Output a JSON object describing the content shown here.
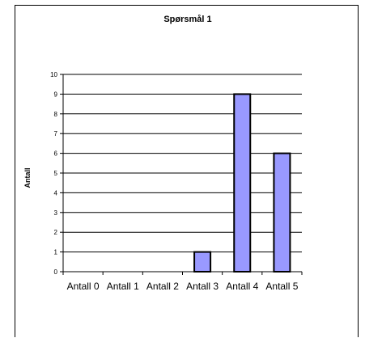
{
  "chart_data": {
    "type": "bar",
    "title": "Spørsmål 1",
    "xlabel": "",
    "ylabel": "Antall",
    "categories": [
      "Antall 0",
      "Antall 1",
      "Antall 2",
      "Antall 3",
      "Antall 4",
      "Antall 5"
    ],
    "values": [
      0,
      0,
      0,
      1,
      9,
      6
    ],
    "ylim": [
      0,
      10
    ],
    "yticks": [
      "0",
      "1",
      "2",
      "3",
      "4",
      "5",
      "6",
      "7",
      "8",
      "9",
      "10"
    ],
    "grid": true,
    "legend": "none",
    "bar_color": "#9999ff",
    "bar_outline": "#000000"
  }
}
